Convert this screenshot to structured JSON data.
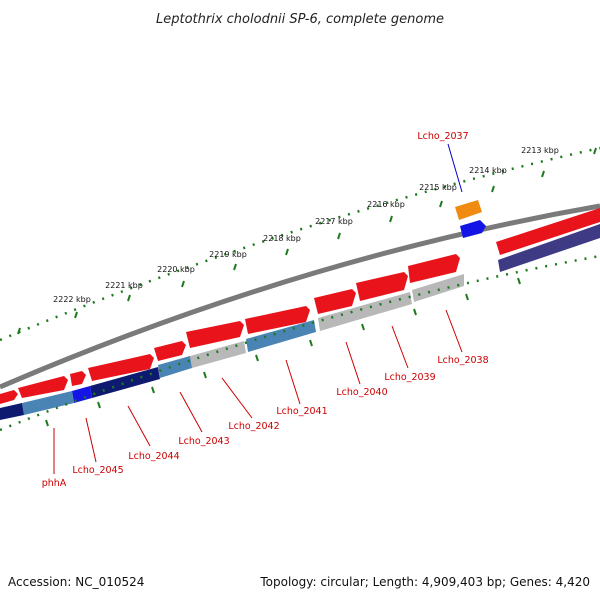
{
  "title": "Leptothrix cholodnii SP-6, complete genome",
  "footer": {
    "accession": "Accession: NC_010524",
    "summary": "Topology: circular; Length: 4,909,403 bp; Genes: 4,420"
  },
  "scale": {
    "unit": "kbp",
    "labels": [
      "2222 kbp",
      "2221 kbp",
      "2220 kbp",
      "2219 kbp",
      "2218 kbp",
      "2217 kbp",
      "2216 kbp",
      "2215 kbp",
      "2214 kbp",
      "2213 kbp"
    ]
  },
  "genes": [
    {
      "name": "Lcho_2037",
      "color": "#0000cc"
    },
    {
      "name": "Lcho_2038",
      "color": "#cc0000"
    },
    {
      "name": "Lcho_2039",
      "color": "#cc0000"
    },
    {
      "name": "Lcho_2040",
      "color": "#cc0000"
    },
    {
      "name": "Lcho_2041",
      "color": "#cc0000"
    },
    {
      "name": "Lcho_2042",
      "color": "#cc0000"
    },
    {
      "name": "Lcho_2043",
      "color": "#cc0000"
    },
    {
      "name": "Lcho_2044",
      "color": "#cc0000"
    },
    {
      "name": "Lcho_2045",
      "color": "#cc0000"
    },
    {
      "name": "phhA",
      "color": "#cc0000"
    }
  ],
  "colors": {
    "backbone": "#7a7a7a",
    "cds_red": "#e8131b",
    "orange": "#f08a10",
    "blue": "#1414e6",
    "steel": "#4a84b4",
    "navy": "#0e1a70",
    "purple": "#3e3a84",
    "gray": "#b8b8b8",
    "ticks": "#1e7a1e"
  }
}
